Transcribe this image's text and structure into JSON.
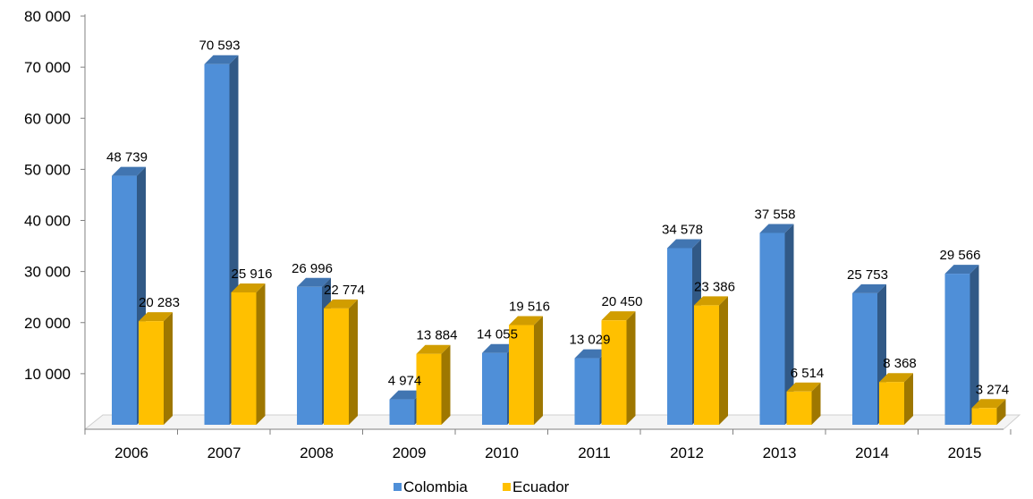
{
  "chart_data": {
    "type": "bar",
    "categories": [
      "2006",
      "2007",
      "2008",
      "2009",
      "2010",
      "2011",
      "2012",
      "2013",
      "2014",
      "2015"
    ],
    "series": [
      {
        "name": "Colombia",
        "values": [
          48739,
          70593,
          26996,
          4974,
          14055,
          13029,
          34578,
          37558,
          25753,
          29566
        ],
        "labels": [
          "48 739",
          "70 593",
          "26 996",
          "4 974",
          "14 055",
          "13 029",
          "34 578",
          "37 558",
          "25 753",
          "29 566"
        ],
        "color": "#4F8FD8"
      },
      {
        "name": "Ecuador",
        "values": [
          20283,
          25916,
          22774,
          13884,
          19516,
          20450,
          23386,
          6514,
          8368,
          3274
        ],
        "labels": [
          "20 283",
          "25 916",
          "22 774",
          "13 884",
          "19 516",
          "20 450",
          "23 386",
          "6 514",
          "8 368",
          "3 274"
        ],
        "color": "#FFC000"
      }
    ],
    "yticks": [
      10000,
      20000,
      30000,
      40000,
      50000,
      60000,
      70000,
      80000
    ],
    "ytick_labels": [
      "10 000",
      "20 000",
      "30 000",
      "40 000",
      "50 000",
      "60 000",
      "70 000",
      "80 000"
    ],
    "ylim": [
      0,
      80000
    ],
    "grid": false,
    "legend_position": "bottom",
    "title": "",
    "xlabel": "",
    "ylabel": ""
  }
}
